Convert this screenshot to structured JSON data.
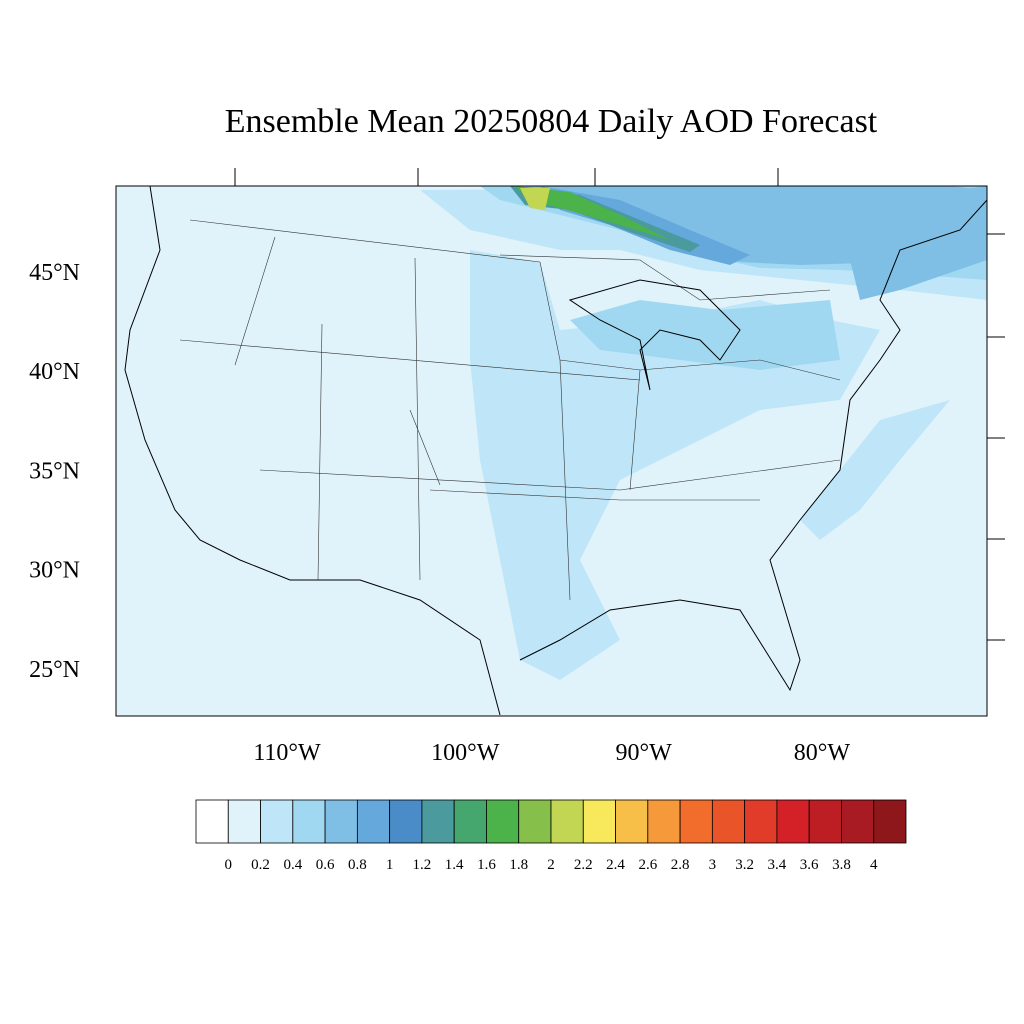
{
  "title": "Ensemble Mean 20250804 Daily AOD Forecast",
  "latitude_labels": [
    {
      "value": 25,
      "label": "25°N"
    },
    {
      "value": 30,
      "label": "30°N"
    },
    {
      "value": 35,
      "label": "35°N"
    },
    {
      "value": 40,
      "label": "40°N"
    },
    {
      "value": 45,
      "label": "45°N"
    }
  ],
  "longitude_labels": [
    {
      "value": -110,
      "label": "110°W"
    },
    {
      "value": -100,
      "label": "100°W"
    },
    {
      "value": -90,
      "label": "90°W"
    },
    {
      "value": -80,
      "label": "80°W"
    }
  ],
  "colorbar": {
    "levels": [
      0,
      0.2,
      0.4,
      0.6,
      0.8,
      1,
      1.2,
      1.4,
      1.6,
      1.8,
      2,
      2.2,
      2.4,
      2.6,
      2.8,
      3,
      3.2,
      3.4,
      3.6,
      3.8,
      4
    ],
    "colors": [
      "#ffffff",
      "#e0f3fb",
      "#bfe6f8",
      "#a0d8f2",
      "#80bfe5",
      "#65a8dc",
      "#4a8cc8",
      "#4a9a9e",
      "#46a76e",
      "#4bb34a",
      "#86c04a",
      "#c3d654",
      "#f7e85c",
      "#f8bf48",
      "#f5993b",
      "#f26c2b",
      "#ea5429",
      "#e13b29",
      "#d42128",
      "#bd1e24",
      "#a81b22",
      "#8e171c"
    ]
  }
}
